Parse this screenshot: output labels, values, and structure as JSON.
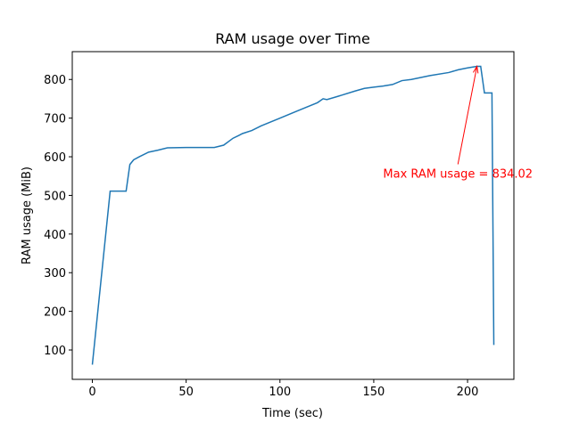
{
  "chart_data": {
    "type": "line",
    "title": "RAM usage over Time",
    "x_label": "Time (sec)",
    "y_label": "RAM usage (MiB)",
    "x": [
      0,
      9.5,
      18,
      20,
      22,
      25,
      30,
      35,
      40,
      50,
      65,
      70,
      75,
      78,
      80,
      85,
      90,
      100,
      110,
      120,
      123,
      125,
      130,
      140,
      145,
      150,
      155,
      160,
      165,
      170,
      180,
      190,
      195,
      200,
      205,
      207,
      209,
      213,
      214
    ],
    "series": [
      {
        "name": "RAM usage",
        "color": "#1f77b4",
        "values": [
          62,
          511,
          511,
          580,
          592,
          600,
          612,
          617,
          623,
          624,
          624,
          630,
          648,
          655,
          660,
          668,
          680,
          700,
          720,
          740,
          750,
          748,
          755,
          770,
          777,
          780,
          783,
          787,
          797,
          800,
          810,
          818,
          825,
          830,
          834,
          834.02,
          765,
          765,
          113
        ]
      }
    ],
    "xlim": [
      -10.7,
      224.7
    ],
    "ylim": [
      24,
      872
    ],
    "xticks": [
      0,
      50,
      100,
      150,
      200
    ],
    "yticks": [
      100,
      200,
      300,
      400,
      500,
      600,
      700,
      800
    ],
    "grid": false,
    "annotations": [
      {
        "text": "Max RAM usage = 834.02",
        "xy": [
          205,
          834.02
        ],
        "xytext": [
          155,
          546
        ],
        "color": "red"
      }
    ]
  }
}
